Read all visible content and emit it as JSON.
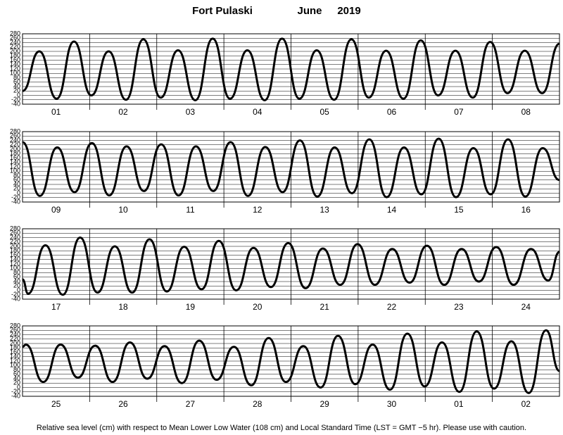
{
  "title": "Fort Pulaski",
  "month": "June",
  "year": "2019",
  "note": "Relative sea level (cm) with respect to Mean Lower Low Water (108 cm) and Local Standard Time (LST = GMT −5 hr). Please use with caution.",
  "chart_data": [
    {
      "type": "line",
      "color": "#000000",
      "categories": [
        "01",
        "02",
        "03",
        "04",
        "05",
        "06",
        "07",
        "08"
      ],
      "xlim": [
        0,
        192
      ],
      "ylim": [
        -40,
        280
      ],
      "yticks": [
        -40,
        -20,
        0,
        20,
        40,
        60,
        80,
        100,
        120,
        140,
        160,
        180,
        200,
        220,
        240,
        260,
        280
      ],
      "grid": true,
      "x": [
        0,
        6,
        12.2,
        18.4,
        24.6,
        30.8,
        37,
        43.2,
        49.4,
        55.6,
        61.8,
        68,
        74.2,
        80.4,
        86.6,
        92.8,
        99,
        105.2,
        111.4,
        117.6,
        123.8,
        130,
        136.2,
        142.4,
        148.6,
        154.8,
        161,
        167.2,
        173.4,
        179.6,
        185.8,
        192
      ],
      "values": [
        20,
        200,
        -15,
        245,
        0,
        200,
        -20,
        255,
        -10,
        205,
        -22,
        258,
        -15,
        205,
        -22,
        258,
        -15,
        205,
        -20,
        255,
        -10,
        203,
        -15,
        250,
        0,
        203,
        -10,
        243,
        10,
        203,
        10,
        235
      ]
    },
    {
      "type": "line",
      "color": "#000000",
      "categories": [
        "09",
        "10",
        "11",
        "12",
        "13",
        "14",
        "15",
        "16"
      ],
      "xlim": [
        0,
        192
      ],
      "ylim": [
        -40,
        280
      ],
      "yticks": [
        -40,
        -20,
        0,
        20,
        40,
        60,
        80,
        100,
        120,
        140,
        160,
        180,
        200,
        220,
        240,
        260,
        280
      ],
      "grid": true,
      "x": [
        0,
        6.2,
        12.4,
        18.6,
        24.8,
        31,
        37.2,
        43.4,
        49.6,
        55.8,
        62,
        68.2,
        74.4,
        80.6,
        86.8,
        93,
        99.2,
        105.4,
        111.6,
        117.8,
        124,
        130.2,
        136.4,
        142.6,
        148.8,
        155,
        161.2,
        167.4,
        173.6,
        179.8,
        186,
        192
      ],
      "values": [
        232,
        -12,
        208,
        5,
        228,
        -10,
        213,
        10,
        222,
        -10,
        213,
        10,
        232,
        -12,
        210,
        5,
        240,
        -15,
        208,
        0,
        245,
        -18,
        208,
        -5,
        248,
        -18,
        205,
        -5,
        245,
        -15,
        205,
        60
      ]
    },
    {
      "type": "line",
      "color": "#000000",
      "categories": [
        "17",
        "18",
        "19",
        "20",
        "21",
        "22",
        "23",
        "24"
      ],
      "xlim": [
        0,
        192
      ],
      "ylim": [
        -40,
        280
      ],
      "yticks": [
        -40,
        -20,
        0,
        20,
        40,
        60,
        80,
        100,
        120,
        140,
        160,
        180,
        200,
        220,
        240,
        260,
        280
      ],
      "grid": true,
      "x": [
        0,
        2,
        8.2,
        14.4,
        20.6,
        26.8,
        33,
        39.2,
        45.4,
        51.6,
        57.8,
        64,
        70.2,
        76.4,
        82.6,
        88.8,
        95,
        101.2,
        107.4,
        113.6,
        119.8,
        126,
        132.2,
        138.4,
        144.6,
        150.8,
        157,
        163.2,
        169.4,
        175.6,
        181.8,
        188,
        192
      ],
      "values": [
        50,
        -15,
        205,
        -20,
        240,
        -10,
        200,
        -10,
        232,
        -5,
        198,
        5,
        225,
        0,
        193,
        15,
        215,
        10,
        190,
        25,
        210,
        25,
        188,
        35,
        203,
        25,
        188,
        40,
        197,
        25,
        188,
        45,
        175
      ]
    },
    {
      "type": "line",
      "color": "#000000",
      "categories": [
        "25",
        "26",
        "27",
        "28",
        "29",
        "30",
        "01",
        "02"
      ],
      "xlim": [
        0,
        192
      ],
      "ylim": [
        -40,
        280
      ],
      "yticks": [
        -40,
        -20,
        0,
        20,
        40,
        60,
        80,
        100,
        120,
        140,
        160,
        180,
        200,
        220,
        240,
        260,
        280
      ],
      "grid": true,
      "x": [
        0,
        1.2,
        7.4,
        13.6,
        19.8,
        26,
        32.2,
        38.4,
        44.6,
        50.8,
        57,
        63.2,
        69.4,
        75.6,
        81.8,
        88,
        94.2,
        100.4,
        106.6,
        112.8,
        119,
        125.2,
        131.4,
        137.6,
        143.8,
        150,
        156.2,
        162.4,
        168.6,
        174.8,
        181,
        187.2,
        192
      ],
      "values": [
        185,
        195,
        25,
        195,
        45,
        190,
        25,
        205,
        40,
        188,
        20,
        213,
        35,
        185,
        10,
        225,
        25,
        188,
        0,
        235,
        15,
        195,
        -10,
        245,
        5,
        205,
        -20,
        255,
        -5,
        210,
        -25,
        260,
        75
      ]
    }
  ]
}
